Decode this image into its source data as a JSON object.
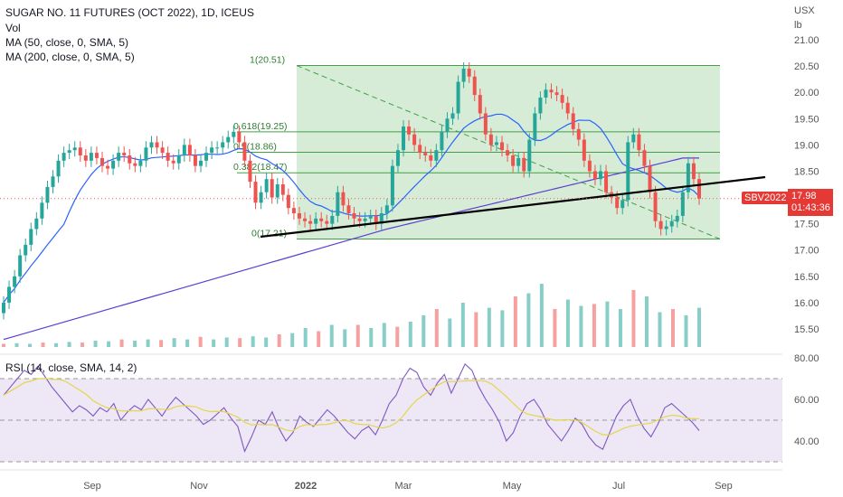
{
  "header": {
    "title": "SUGAR NO. 11 FUTURES (OCT 2022), 1D, ICEUS",
    "indicators": [
      "Vol",
      "MA (50, close, 0, SMA, 5)",
      "MA (200, close, 0, SMA, 5)"
    ]
  },
  "price_axis": {
    "currency": "USX",
    "unit": "lb",
    "ticks": [
      "21.00",
      "20.50",
      "20.00",
      "19.50",
      "19.00",
      "18.50",
      "18.00",
      "17.50",
      "17.00",
      "16.50",
      "16.00",
      "15.50"
    ]
  },
  "rsi_axis": {
    "ticks": [
      "80.00",
      "60.00",
      "40.00"
    ]
  },
  "time_axis": {
    "ticks": [
      "Sep",
      "Nov",
      "2022",
      "Mar",
      "May",
      "Jul",
      "Sep"
    ]
  },
  "symbol_tag": "SBV2022",
  "last_price": "17.98",
  "countdown": "01:43:36",
  "rsi_legend": "RSI (14, close, SMA, 14, 2)",
  "fib_levels": [
    {
      "label": "1(20.51)",
      "value": 20.51
    },
    {
      "label": "0.618(19.25)",
      "value": 19.25
    },
    {
      "label": "0.5(18.86)",
      "value": 18.86
    },
    {
      "label": "0.382(18.47)",
      "value": 18.47
    },
    {
      "label": "0(17.21)",
      "value": 17.21
    }
  ],
  "colors": {
    "up": "#26a69a",
    "down": "#ef5350",
    "ma50": "#2962ff",
    "ma200": "#5b3fd1",
    "fib_fill": "#c8e6c9",
    "fib_line": "#43a047",
    "rsi": "#7e57c2",
    "rsi_ma": "#e6d64a",
    "rsi_band": "#ede7f6"
  },
  "chart_data": {
    "type": "candlestick",
    "price_range": [
      15.5,
      21.0
    ],
    "closes": [
      16.0,
      16.3,
      16.5,
      16.9,
      17.1,
      17.4,
      17.6,
      17.9,
      18.2,
      18.4,
      18.7,
      18.85,
      18.9,
      18.95,
      18.8,
      18.7,
      18.85,
      18.75,
      18.6,
      18.55,
      18.7,
      18.85,
      18.8,
      18.65,
      18.6,
      18.7,
      18.95,
      19.05,
      18.95,
      18.85,
      18.7,
      18.65,
      18.8,
      19.0,
      18.8,
      18.6,
      18.7,
      18.85,
      18.95,
      18.95,
      19.05,
      19.15,
      19.25,
      19.05,
      18.7,
      18.3,
      17.9,
      18.1,
      18.35,
      18.0,
      18.25,
      18.05,
      17.8,
      17.7,
      17.6,
      17.55,
      17.5,
      17.6,
      17.55,
      17.5,
      17.65,
      18.1,
      17.85,
      17.7,
      17.6,
      17.55,
      17.6,
      17.65,
      17.5,
      17.7,
      17.85,
      18.6,
      18.9,
      19.35,
      19.2,
      19.0,
      18.85,
      18.8,
      18.7,
      18.9,
      19.25,
      19.5,
      19.6,
      20.2,
      20.45,
      20.3,
      19.95,
      19.6,
      19.2,
      19.0,
      19.05,
      18.9,
      18.8,
      18.6,
      18.75,
      18.5,
      19.1,
      19.6,
      19.9,
      20.05,
      20.0,
      19.95,
      19.8,
      19.6,
      19.3,
      19.1,
      18.7,
      18.5,
      18.35,
      18.5,
      18.1,
      18.0,
      17.8,
      17.95,
      19.05,
      19.2,
      18.9,
      18.6,
      18.1,
      17.55,
      17.4,
      17.45,
      17.55,
      17.65,
      18.1,
      18.65,
      18.35,
      17.98
    ],
    "volume": [
      0.05,
      0.06,
      0.05,
      0.07,
      0.06,
      0.08,
      0.07,
      0.1,
      0.09,
      0.12,
      0.1,
      0.12,
      0.11,
      0.14,
      0.12,
      0.16,
      0.12,
      0.15,
      0.14,
      0.17,
      0.15,
      0.2,
      0.22,
      0.3,
      0.25,
      0.35,
      0.28,
      0.35,
      0.3,
      0.38,
      0.32,
      0.4,
      0.5,
      0.6,
      0.45,
      0.7,
      0.55,
      0.62,
      0.58,
      0.8,
      0.85,
      1.0,
      0.6,
      0.75,
      0.65,
      0.68,
      0.72,
      0.6,
      0.9,
      0.8,
      0.55,
      0.6,
      0.5,
      0.62
    ],
    "rsi": [
      62,
      66,
      70,
      74,
      72,
      76,
      71,
      66,
      62,
      58,
      54,
      57,
      55,
      52,
      56,
      54,
      58,
      50,
      54,
      57,
      55,
      60,
      56,
      52,
      57,
      61,
      58,
      55,
      52,
      48,
      50,
      53,
      56,
      51,
      47,
      35,
      42,
      50,
      48,
      54,
      46,
      40,
      44,
      52,
      49,
      47,
      51,
      55,
      52,
      48,
      44,
      41,
      45,
      47,
      43,
      50,
      58,
      62,
      70,
      75,
      73,
      66,
      62,
      68,
      72,
      63,
      70,
      77,
      74,
      66,
      60,
      55,
      49,
      40,
      44,
      52,
      58,
      60,
      55,
      48,
      44,
      40,
      45,
      51,
      48,
      42,
      38,
      36,
      44,
      52,
      57,
      60,
      52,
      46,
      42,
      48,
      56,
      58,
      55,
      52,
      49,
      45
    ]
  }
}
